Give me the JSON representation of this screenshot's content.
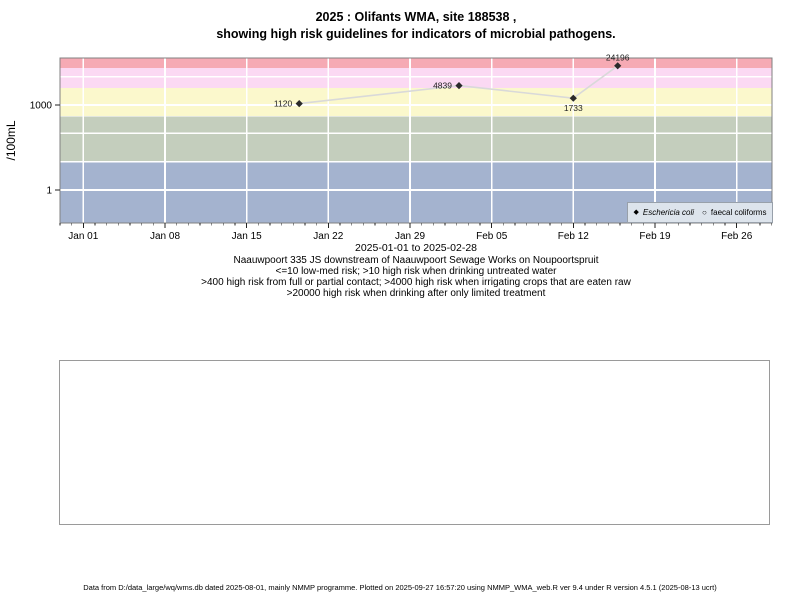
{
  "title": {
    "line1": "2025 : Olifants WMA, site 188538 ,",
    "line2": "showing high risk guidelines for indicators of microbial pathogens."
  },
  "chart_data": {
    "type": "line",
    "title": "2025 : Olifants WMA, site 188538, showing high risk guidelines for indicators of microbial pathogens.",
    "ylabel": "/100mL",
    "xlabel": "",
    "y_scale": "log10",
    "ylim": [
      0.07,
      45000
    ],
    "x_range": "2025-01-01 to 2025-02-28",
    "x_ticks": [
      {
        "label": "Jan 01",
        "day": 0
      },
      {
        "label": "Jan 08",
        "day": 7
      },
      {
        "label": "Jan 15",
        "day": 14
      },
      {
        "label": "Jan 22",
        "day": 21
      },
      {
        "label": "Jan 29",
        "day": 28
      },
      {
        "label": "Feb 05",
        "day": 35
      },
      {
        "label": "Feb 12",
        "day": 42
      },
      {
        "label": "Feb 19",
        "day": 49
      },
      {
        "label": "Feb 26",
        "day": 56
      }
    ],
    "minor_tick_days": {
      "from": -2,
      "to": 59
    },
    "y_ticks": [
      {
        "label": "1000",
        "value": 1000
      },
      {
        "label": "1",
        "value": 1
      }
    ],
    "y_gridlines": [
      1,
      10,
      100,
      1000,
      10000
    ],
    "grid_color": "#ffffff",
    "risk_bands": [
      {
        "range": "<=10 low-med risk",
        "color": "#a4b3cf",
        "from": 0.07,
        "to": 10
      },
      {
        "range": ">10 high risk drinking untreated water",
        "color": "#c4cebd",
        "from": 10,
        "to": 400
      },
      {
        "range": ">400 high risk full or partial contact",
        "color": "#fbf8cc",
        "from": 400,
        "to": 4000
      },
      {
        "range": ">4000 high risk irrigating crops eaten raw",
        "color": "#fbd9f3",
        "from": 4000,
        "to": 20000
      },
      {
        "range": ">20000 high risk drinking after limited treatment",
        "color": "#f6aab4",
        "from": 20000,
        "to": 45000
      }
    ],
    "series": [
      {
        "name": "Eschericia coli",
        "marker": "diamond-filled",
        "line_color": "#d9d9d9",
        "point_color": "#2a2a2a",
        "points": [
          {
            "date": "2025-01-19",
            "day": 18.5,
            "value": 1120,
            "label": "1120",
            "label_pos": "left"
          },
          {
            "date": "2025-02-02",
            "day": 32.2,
            "value": 4839,
            "label": "4839",
            "label_pos": "left"
          },
          {
            "date": "2025-02-12",
            "day": 42.0,
            "value": 1733,
            "label": "1733",
            "label_pos": "below"
          },
          {
            "date": "2025-02-16",
            "day": 45.8,
            "value": 24196,
            "label": "24196",
            "label_pos": "above"
          }
        ]
      },
      {
        "name": "faecal coliforms",
        "marker": "circle-open",
        "line_color": "#d9d9d9",
        "point_color": "#2a2a2a",
        "points": []
      }
    ]
  },
  "legend": {
    "items": [
      {
        "label": "Eschericia coli",
        "glyph": "◆",
        "marker": "diamond-filled-icon",
        "italic": true
      },
      {
        "label": "faecal coliforms",
        "glyph": "○",
        "marker": "circle-open-icon",
        "italic": false
      }
    ]
  },
  "annotations": {
    "date_range": "2025-01-01 to 2025-02-28",
    "lines": [
      "Naauwpoort 335 JS downstream of Naauwpoort Sewage Works on Noupoortspruit",
      "<=10 low-med risk; >10 high risk when drinking untreated water",
      ">400 high risk from full or partial contact; >4000 high risk when irrigating crops that are eaten raw",
      ">20000 high risk when drinking after only limited treatment"
    ]
  },
  "footer": "Data from D:/data_large/wq/wms.db dated 2025-08-01, mainly NMMP programme. Plotted on 2025-09-27 16:57:20 using NMMP_WMA_web.R ver 9.4 under R version 4.5.1 (2025-08-13 ucrt)"
}
